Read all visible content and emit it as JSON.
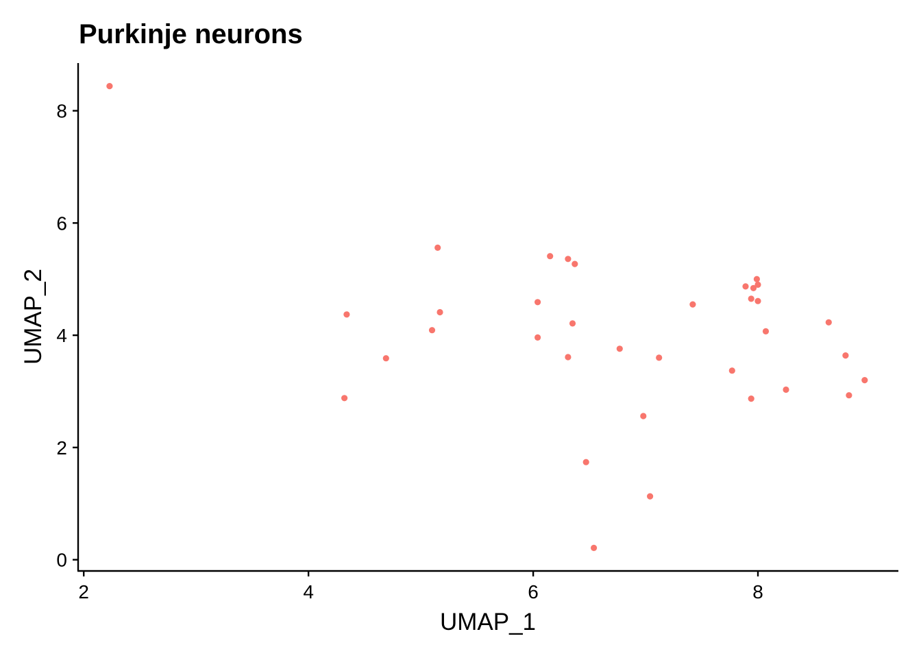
{
  "chart_data": {
    "type": "scatter",
    "title": "Purkinje neurons",
    "xlabel": "UMAP_1",
    "ylabel": "UMAP_2",
    "xlim": [
      1.95,
      9.25
    ],
    "ylim": [
      -0.2,
      8.85
    ],
    "xticks": [
      2,
      4,
      6,
      8
    ],
    "yticks": [
      0,
      2,
      4,
      6,
      8
    ],
    "grid": false,
    "legend": "none",
    "point_color": "#F8766D",
    "points": [
      {
        "x": 2.23,
        "y": 8.44
      },
      {
        "x": 4.34,
        "y": 4.37
      },
      {
        "x": 4.32,
        "y": 2.88
      },
      {
        "x": 4.69,
        "y": 3.59
      },
      {
        "x": 5.1,
        "y": 4.09
      },
      {
        "x": 5.15,
        "y": 5.56
      },
      {
        "x": 5.17,
        "y": 4.41
      },
      {
        "x": 6.04,
        "y": 4.59
      },
      {
        "x": 6.04,
        "y": 3.96
      },
      {
        "x": 6.15,
        "y": 5.41
      },
      {
        "x": 6.31,
        "y": 5.36
      },
      {
        "x": 6.37,
        "y": 5.27
      },
      {
        "x": 6.35,
        "y": 4.21
      },
      {
        "x": 6.31,
        "y": 3.61
      },
      {
        "x": 6.47,
        "y": 1.74
      },
      {
        "x": 6.54,
        "y": 0.21
      },
      {
        "x": 6.77,
        "y": 3.76
      },
      {
        "x": 6.98,
        "y": 2.56
      },
      {
        "x": 7.04,
        "y": 1.13
      },
      {
        "x": 7.12,
        "y": 3.6
      },
      {
        "x": 7.42,
        "y": 4.55
      },
      {
        "x": 7.77,
        "y": 3.37
      },
      {
        "x": 7.89,
        "y": 4.87
      },
      {
        "x": 7.94,
        "y": 4.65
      },
      {
        "x": 7.96,
        "y": 4.84
      },
      {
        "x": 7.99,
        "y": 5.0
      },
      {
        "x": 8.0,
        "y": 4.9
      },
      {
        "x": 8.0,
        "y": 4.61
      },
      {
        "x": 8.07,
        "y": 4.07
      },
      {
        "x": 7.94,
        "y": 2.87
      },
      {
        "x": 8.25,
        "y": 3.03
      },
      {
        "x": 8.63,
        "y": 4.23
      },
      {
        "x": 8.78,
        "y": 3.64
      },
      {
        "x": 8.81,
        "y": 2.93
      },
      {
        "x": 8.95,
        "y": 3.2
      }
    ]
  }
}
